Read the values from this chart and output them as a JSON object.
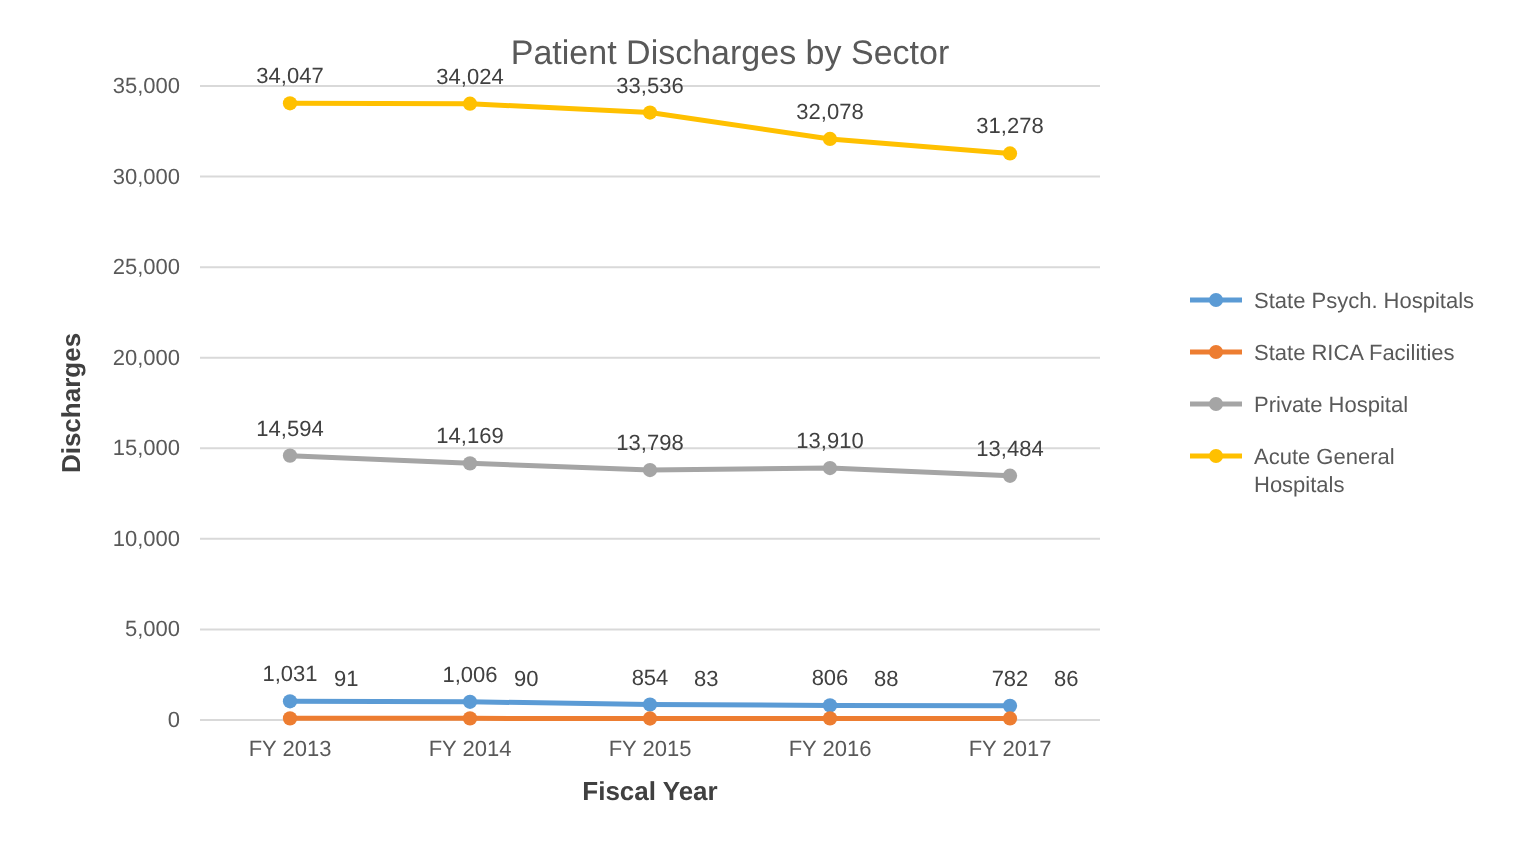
{
  "chart_data": {
    "type": "line",
    "title": "Patient Discharges by Sector",
    "xlabel": "Fiscal Year",
    "ylabel": "Discharges",
    "categories": [
      "FY 2013",
      "FY 2014",
      "FY 2015",
      "FY 2016",
      "FY 2017"
    ],
    "series": [
      {
        "name": "State Psych. Hospitals",
        "color": "#5b9bd5",
        "values": [
          1031,
          1006,
          854,
          806,
          782
        ],
        "value_labels": [
          "1,031",
          "1,006",
          "854",
          "806",
          "782"
        ]
      },
      {
        "name": "State RICA Facilities",
        "color": "#ed7d31",
        "values": [
          91,
          90,
          83,
          88,
          86
        ],
        "value_labels": [
          "91",
          "90",
          "83",
          "88",
          "86"
        ]
      },
      {
        "name": "Private Hospital",
        "color": "#a5a5a5",
        "values": [
          14594,
          14169,
          13798,
          13910,
          13484
        ],
        "value_labels": [
          "14,594",
          "14,169",
          "13,798",
          "13,910",
          "13,484"
        ]
      },
      {
        "name": "Acute General Hospitals",
        "color": "#ffc000",
        "values": [
          34047,
          34024,
          33536,
          32078,
          31278
        ],
        "value_labels": [
          "34,047",
          "34,024",
          "33,536",
          "32,078",
          "31,278"
        ]
      }
    ],
    "ylim": [
      0,
      35000
    ],
    "yticks": [
      {
        "value": 0,
        "label": "0"
      },
      {
        "value": 5000,
        "label": "5,000"
      },
      {
        "value": 10000,
        "label": "10,000"
      },
      {
        "value": 15000,
        "label": "15,000"
      },
      {
        "value": 20000,
        "label": "20,000"
      },
      {
        "value": 25000,
        "label": "25,000"
      },
      {
        "value": 30000,
        "label": "30,000"
      },
      {
        "value": 35000,
        "label": "35,000"
      }
    ],
    "grid": "y",
    "legend": "right",
    "marker": "circle",
    "line_style": "solid"
  }
}
